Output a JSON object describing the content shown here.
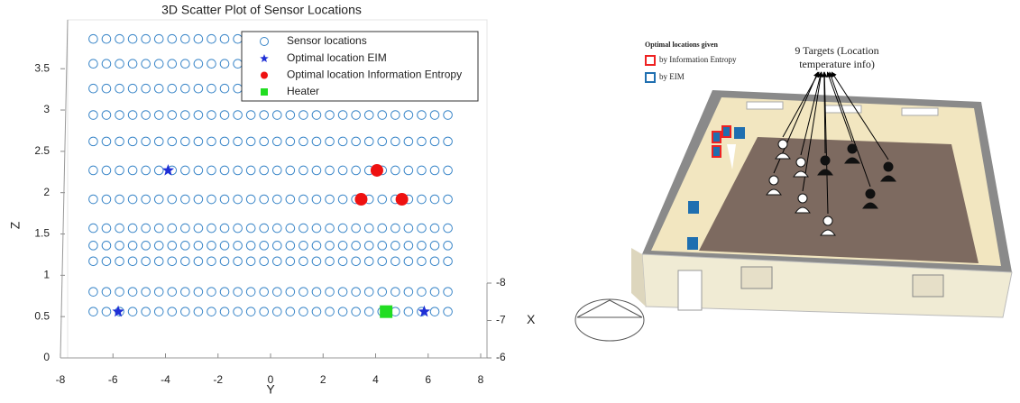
{
  "chart_data": {
    "type": "scatter3d",
    "title": "3D Scatter Plot of Sensor Locations",
    "xlabel": "Y",
    "ylabel": "Z",
    "xlim": [
      -8,
      8
    ],
    "xticks": [
      -8,
      -6,
      -4,
      -2,
      0,
      2,
      4,
      6,
      8
    ],
    "ylim": [
      0,
      3.95
    ],
    "yticks": [
      0,
      0.5,
      1,
      1.5,
      2,
      2.5,
      3,
      3.5
    ],
    "depth_axis": {
      "label": "X",
      "lim": [
        -8,
        -6
      ],
      "ticks": [
        -8,
        -7,
        -6
      ]
    },
    "sensor_grid": {
      "name": "Sensor locations",
      "color": "#3a86c8",
      "y": [
        -6.75,
        -6.25,
        -5.75,
        -5.25,
        -4.75,
        -4.25,
        -3.75,
        -3.25,
        -2.75,
        -2.25,
        -1.75,
        -1.25,
        -0.75,
        -0.25,
        0.25,
        0.75,
        1.25,
        1.75,
        2.25,
        2.75,
        3.25,
        3.75,
        4.25,
        4.75,
        5.25,
        5.75,
        6.25,
        6.75
      ],
      "z": [
        0.56,
        0.8,
        1.17,
        1.36,
        1.57,
        1.92,
        2.27,
        2.62,
        2.94,
        3.26,
        3.56,
        3.86
      ]
    },
    "series": [
      {
        "name": "Optimal location EIM",
        "color": "#1f2fd6",
        "marker": "star",
        "x": [
          -3.9,
          -5.8,
          5.85
        ],
        "y": [
          2.27,
          0.56,
          0.56
        ]
      },
      {
        "name": "Optimal location Information Entropy",
        "color": "#ee1111",
        "marker": "circle",
        "x": [
          4.05,
          3.45,
          5.0
        ],
        "y": [
          2.27,
          1.92,
          1.92
        ]
      },
      {
        "name": "Heater",
        "color": "#22dd22",
        "marker": "square",
        "x": [
          4.4
        ],
        "y": [
          0.56
        ]
      }
    ]
  },
  "diagram": {
    "legend_title": "Optimal locations given",
    "legend_items": [
      "by Information Entropy",
      "by EIM"
    ],
    "targets_label": [
      "9 Targets (Location",
      "temperature info)"
    ]
  }
}
